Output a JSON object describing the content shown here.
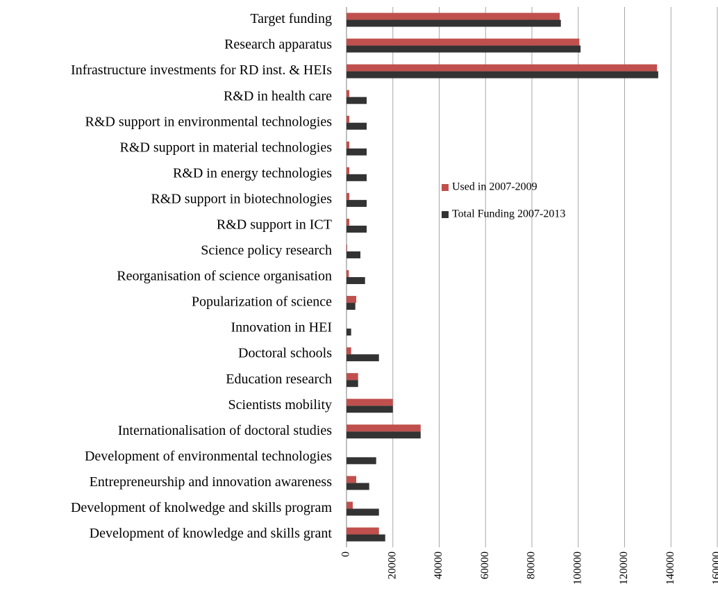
{
  "chart_data": {
    "type": "hbar",
    "categories": [
      "Target funding",
      "Research apparatus",
      "Infrastructure investments for RD inst. & HEIs",
      "R&D in health care",
      "R&D support in environmental technologies",
      "R&D support in material technologies",
      "R&D in energy technologies",
      "R&D support in biotechnologies",
      "R&D support in ICT",
      "Science policy research",
      "Reorganisation of science organisation",
      "Popularization of science",
      "Innovation in HEI",
      "Doctoral schools",
      "Education research",
      "Scientists mobility",
      "Internationalisation of doctoral studies",
      "Development of environmental technologies",
      "Entrepreneurship and innovation awareness",
      "Development of knolwedge and skills program",
      "Development of knowledge and skills grant"
    ],
    "series": [
      {
        "name": "Used in 2007-2009",
        "color": "#c0504d",
        "values": [
          92000,
          100500,
          134000,
          1200,
          1200,
          1200,
          1200,
          1200,
          1200,
          300,
          1000,
          4200,
          0,
          2000,
          5000,
          20000,
          32000,
          0,
          4200,
          2700,
          14000
        ]
      },
      {
        "name": "Total Funding 2007-2013",
        "color": "#333333",
        "values": [
          92500,
          101000,
          134500,
          8700,
          8700,
          8700,
          8700,
          8700,
          8700,
          6000,
          8000,
          3800,
          2000,
          14000,
          5000,
          20000,
          32000,
          12800,
          9800,
          14000,
          16700
        ]
      }
    ],
    "xlim": [
      0,
      160000
    ],
    "xticks": [
      0,
      20000,
      40000,
      60000,
      80000,
      100000,
      120000,
      140000,
      160000
    ],
    "grid": true,
    "legend_position": "center-right"
  }
}
